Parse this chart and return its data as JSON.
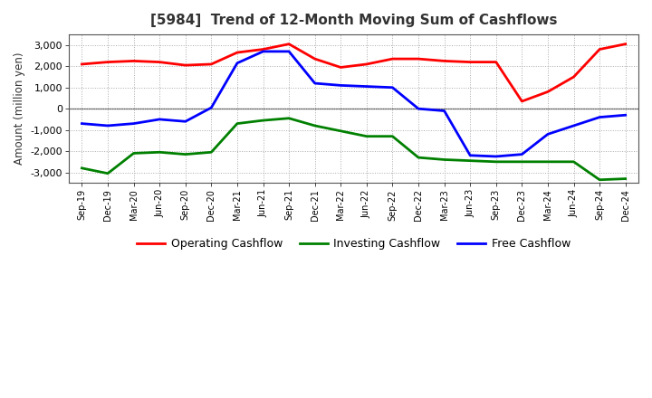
{
  "title": "[5984]  Trend of 12-Month Moving Sum of Cashflows",
  "ylabel": "Amount (million yen)",
  "background_color": "#ffffff",
  "plot_bg_color": "#ffffff",
  "grid_color": "#aaaaaa",
  "title_color": "#333333",
  "xlabels": [
    "Sep-19",
    "Dec-19",
    "Mar-20",
    "Jun-20",
    "Sep-20",
    "Dec-20",
    "Mar-21",
    "Jun-21",
    "Sep-21",
    "Dec-21",
    "Mar-22",
    "Jun-22",
    "Sep-22",
    "Dec-22",
    "Mar-23",
    "Jun-23",
    "Sep-23",
    "Dec-23",
    "Mar-24",
    "Jun-24",
    "Sep-24",
    "Dec-24"
  ],
  "operating_cashflow": [
    2100,
    2200,
    2250,
    2200,
    2050,
    2100,
    2650,
    2800,
    3050,
    2350,
    1950,
    2100,
    2350,
    2350,
    2250,
    2200,
    2200,
    350,
    800,
    1500,
    2800,
    3050
  ],
  "investing_cashflow": [
    -2800,
    -3050,
    -2100,
    -2050,
    -2150,
    -2050,
    -700,
    -550,
    -450,
    -800,
    -1050,
    -1300,
    -1300,
    -2300,
    -2400,
    -2450,
    -2500,
    -2500,
    -2500,
    -2500,
    -3350,
    -3300
  ],
  "free_cashflow": [
    -700,
    -800,
    -700,
    -500,
    -600,
    50,
    2150,
    2700,
    2700,
    1200,
    1100,
    1050,
    1000,
    0,
    -100,
    -2200,
    -2250,
    -2150,
    -1200,
    -800,
    -400,
    -300
  ],
  "operating_color": "#ff0000",
  "investing_color": "#008000",
  "free_color": "#0000ff",
  "ylim": [
    -3500,
    3500
  ],
  "yticks": [
    -3000,
    -2000,
    -1000,
    0,
    1000,
    2000,
    3000
  ],
  "line_width": 2.0
}
